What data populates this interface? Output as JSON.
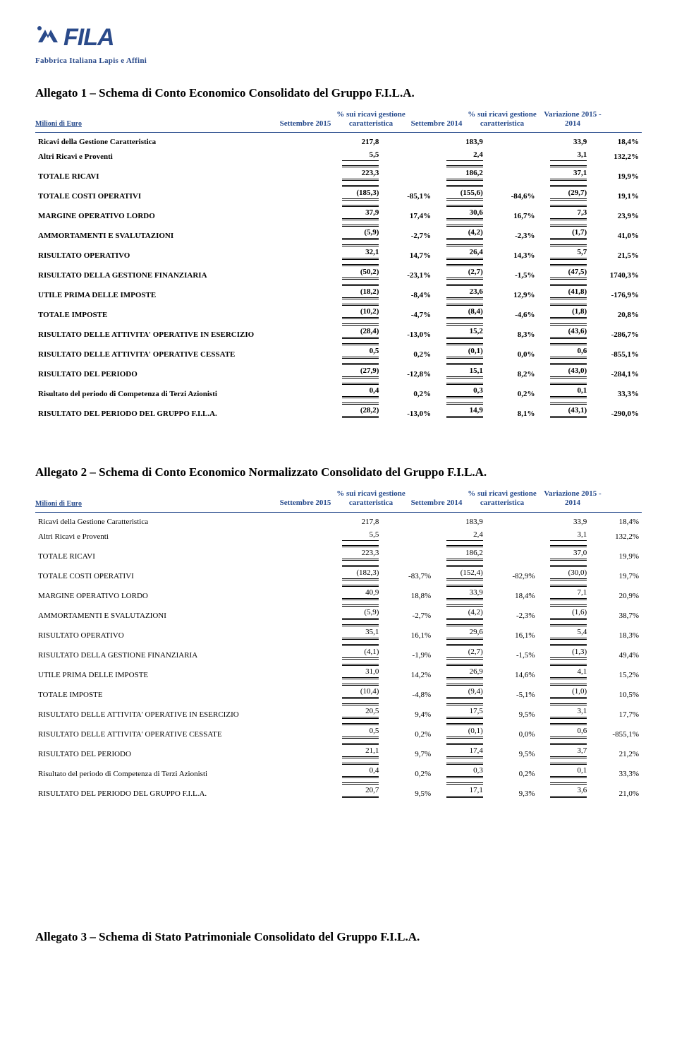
{
  "logo": {
    "tagline": "Fabbrica Italiana Lapis e Affini",
    "brand": "FILA",
    "brand_color": "#2a4a8a"
  },
  "titles": {
    "allegato1": "Allegato 1 – Schema di Conto Economico  Consolidato del Gruppo F.I.L.A.",
    "allegato2": "Allegato 2 – Schema di Conto Economico  Normalizzato Consolidato del Gruppo F.I.L.A.",
    "allegato3": "Allegato 3 – Schema di Stato Patrimoniale Consolidato del Gruppo F.I.L.A."
  },
  "headers": {
    "meta_label": "Milioni di Euro",
    "col1": "Settembre 2015",
    "col2": "% sui ricavi gestione caratteristica",
    "col3": "Settembre 2014",
    "col4": "% sui ricavi gestione caratteristica",
    "col5": "Variazione 2015 - 2014"
  },
  "table1": {
    "rows": [
      {
        "label": "Ricavi della Gestione Caratteristica",
        "bold": true,
        "style": "plain",
        "v": [
          "217,8",
          "",
          "183,9",
          "",
          "33,9",
          "18,4%"
        ]
      },
      {
        "label": "Altri Ricavi e Proventi",
        "bold": true,
        "style": "single",
        "v": [
          "5,5",
          "",
          "2,4",
          "",
          "3,1",
          "132,2%"
        ]
      },
      {
        "label": "TOTALE RICAVI",
        "bold": true,
        "style": "double",
        "v": [
          "223,3",
          "",
          "186,2",
          "",
          "37,1",
          "19,9%"
        ]
      },
      {
        "label": "TOTALE COSTI OPERATIVI",
        "bold": true,
        "style": "double",
        "v": [
          "(185,3)",
          "-85,1%",
          "(155,6)",
          "-84,6%",
          "(29,7)",
          "19,1%"
        ]
      },
      {
        "label": "MARGINE OPERATIVO LORDO",
        "bold": true,
        "style": "double",
        "v": [
          "37,9",
          "17,4%",
          "30,6",
          "16,7%",
          "7,3",
          "23,9%"
        ]
      },
      {
        "label": "AMMORTAMENTI E SVALUTAZIONI",
        "bold": true,
        "style": "double",
        "v": [
          "(5,9)",
          "-2,7%",
          "(4,2)",
          "-2,3%",
          "(1,7)",
          "41,0%"
        ]
      },
      {
        "label": "RISULTATO OPERATIVO",
        "bold": true,
        "style": "double",
        "v": [
          "32,1",
          "14,7%",
          "26,4",
          "14,3%",
          "5,7",
          "21,5%"
        ]
      },
      {
        "label": "RISULTATO DELLA GESTIONE FINANZIARIA",
        "bold": true,
        "style": "double",
        "v": [
          "(50,2)",
          "-23,1%",
          "(2,7)",
          "-1,5%",
          "(47,5)",
          "1740,3%"
        ]
      },
      {
        "label": "UTILE PRIMA DELLE IMPOSTE",
        "bold": true,
        "style": "double",
        "v": [
          "(18,2)",
          "-8,4%",
          "23,6",
          "12,9%",
          "(41,8)",
          "-176,9%"
        ]
      },
      {
        "label": "TOTALE IMPOSTE",
        "bold": true,
        "style": "double",
        "v": [
          "(10,2)",
          "-4,7%",
          "(8,4)",
          "-4,6%",
          "(1,8)",
          "20,8%"
        ]
      },
      {
        "label": "RISULTATO DELLE ATTIVITA' OPERATIVE IN ESERCIZIO",
        "bold": true,
        "style": "double",
        "v": [
          "(28,4)",
          "-13,0%",
          "15,2",
          "8,3%",
          "(43,6)",
          "-286,7%"
        ]
      },
      {
        "label": "RISULTATO DELLE ATTIVITA' OPERATIVE CESSATE",
        "bold": true,
        "style": "double",
        "v": [
          "0,5",
          "0,2%",
          "(0,1)",
          "0,0%",
          "0,6",
          "-855,1%"
        ]
      },
      {
        "label": "RISULTATO DEL PERIODO",
        "bold": true,
        "style": "double",
        "v": [
          "(27,9)",
          "-12,8%",
          "15,1",
          "8,2%",
          "(43,0)",
          "-284,1%"
        ]
      },
      {
        "label": "Risultato del periodo di Competenza di Terzi Azionisti",
        "bold": true,
        "style": "double",
        "v": [
          "0,4",
          "0,2%",
          "0,3",
          "0,2%",
          "0,1",
          "33,3%"
        ]
      },
      {
        "label": "RISULTATO DEL PERIODO DEL GRUPPO F.I.L.A.",
        "bold": true,
        "style": "double",
        "v": [
          "(28,2)",
          "-13,0%",
          "14,9",
          "8,1%",
          "(43,1)",
          "-290,0%"
        ]
      }
    ]
  },
  "table2": {
    "rows": [
      {
        "label": "Ricavi della Gestione Caratteristica",
        "bold": false,
        "style": "plain",
        "v": [
          "217,8",
          "",
          "183,9",
          "",
          "33,9",
          "18,4%"
        ]
      },
      {
        "label": "Altri Ricavi e Proventi",
        "bold": false,
        "style": "single",
        "v": [
          "5,5",
          "",
          "2,4",
          "",
          "3,1",
          "132,2%"
        ]
      },
      {
        "label": "TOTALE RICAVI",
        "bold": false,
        "style": "double",
        "v": [
          "223,3",
          "",
          "186,2",
          "",
          "37,0",
          "19,9%"
        ]
      },
      {
        "label": "TOTALE COSTI OPERATIVI",
        "bold": false,
        "style": "double",
        "v": [
          "(182,3)",
          "-83,7%",
          "(152,4)",
          "-82,9%",
          "(30,0)",
          "19,7%"
        ]
      },
      {
        "label": "MARGINE OPERATIVO LORDO",
        "bold": false,
        "style": "double",
        "v": [
          "40,9",
          "18,8%",
          "33,9",
          "18,4%",
          "7,1",
          "20,9%"
        ]
      },
      {
        "label": "AMMORTAMENTI E SVALUTAZIONI",
        "bold": false,
        "style": "double",
        "v": [
          "(5,9)",
          "-2,7%",
          "(4,2)",
          "-2,3%",
          "(1,6)",
          "38,7%"
        ]
      },
      {
        "label": "RISULTATO OPERATIVO",
        "bold": false,
        "style": "double",
        "v": [
          "35,1",
          "16,1%",
          "29,6",
          "16,1%",
          "5,4",
          "18,3%"
        ]
      },
      {
        "label": "RISULTATO DELLA GESTIONE FINANZIARIA",
        "bold": false,
        "style": "double",
        "v": [
          "(4,1)",
          "-1,9%",
          "(2,7)",
          "-1,5%",
          "(1,3)",
          "49,4%"
        ]
      },
      {
        "label": "UTILE PRIMA DELLE IMPOSTE",
        "bold": false,
        "style": "double",
        "v": [
          "31,0",
          "14,2%",
          "26,9",
          "14,6%",
          "4,1",
          "15,2%"
        ]
      },
      {
        "label": "TOTALE IMPOSTE",
        "bold": false,
        "style": "double",
        "v": [
          "(10,4)",
          "-4,8%",
          "(9,4)",
          "-5,1%",
          "(1,0)",
          "10,5%"
        ]
      },
      {
        "label": "RISULTATO DELLE ATTIVITA' OPERATIVE IN ESERCIZIO",
        "bold": false,
        "style": "double",
        "v": [
          "20,5",
          "9,4%",
          "17,5",
          "9,5%",
          "3,1",
          "17,7%"
        ]
      },
      {
        "label": "RISULTATO DELLE ATTIVITA' OPERATIVE CESSATE",
        "bold": false,
        "style": "double",
        "v": [
          "0,5",
          "0,2%",
          "(0,1)",
          "0,0%",
          "0,6",
          "-855,1%"
        ]
      },
      {
        "label": "RISULTATO DEL PERIODO",
        "bold": false,
        "style": "double",
        "v": [
          "21,1",
          "9,7%",
          "17,4",
          "9,5%",
          "3,7",
          "21,2%"
        ]
      },
      {
        "label": "Risultato del periodo di Competenza di Terzi Azionisti",
        "bold": false,
        "style": "double",
        "v": [
          "0,4",
          "0,2%",
          "0,3",
          "0,2%",
          "0,1",
          "33,3%"
        ]
      },
      {
        "label": "RISULTATO DEL PERIODO DEL GRUPPO F.I.L.A.",
        "bold": false,
        "style": "double",
        "v": [
          "20,7",
          "9,5%",
          "17,1",
          "9,3%",
          "3,6",
          "21,0%"
        ]
      }
    ]
  },
  "colors": {
    "heading_blue": "#264a8c"
  }
}
